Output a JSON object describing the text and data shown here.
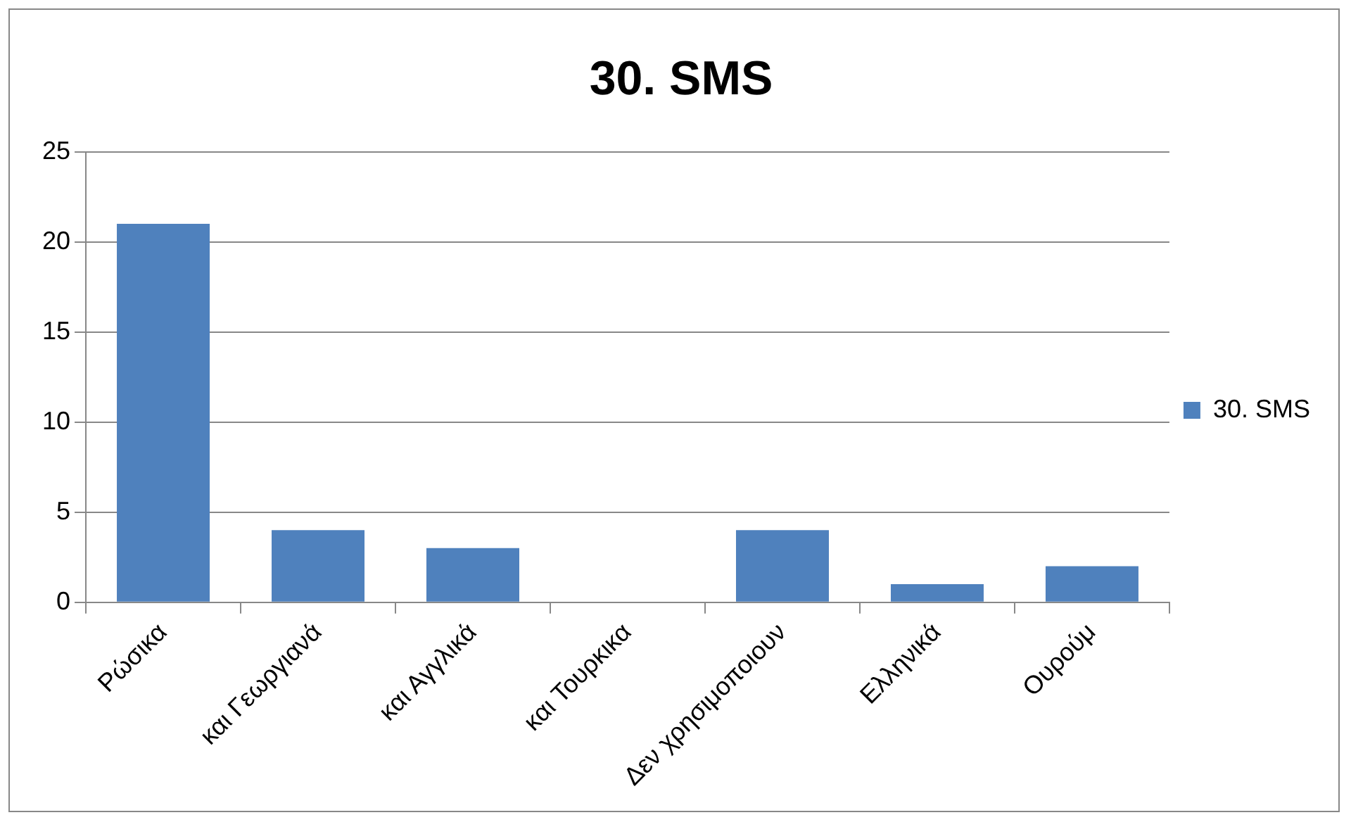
{
  "chart_data": {
    "type": "bar",
    "title": "30. SMS",
    "categories": [
      "Ρώσικα",
      "και Γεωργιανά",
      "και Αγγλικά",
      "και Τουρκικα",
      "Δεν χρησιμοποιουν",
      "Ελληνικά",
      "Ουρούμ"
    ],
    "series": [
      {
        "name": "30. SMS",
        "color": "#4f81bd",
        "values": [
          21,
          4,
          3,
          0,
          4,
          1,
          2
        ]
      }
    ],
    "ylim": [
      0,
      25
    ],
    "yticks": [
      0,
      5,
      10,
      15,
      20,
      25
    ],
    "grid": "y",
    "legend": "right"
  }
}
